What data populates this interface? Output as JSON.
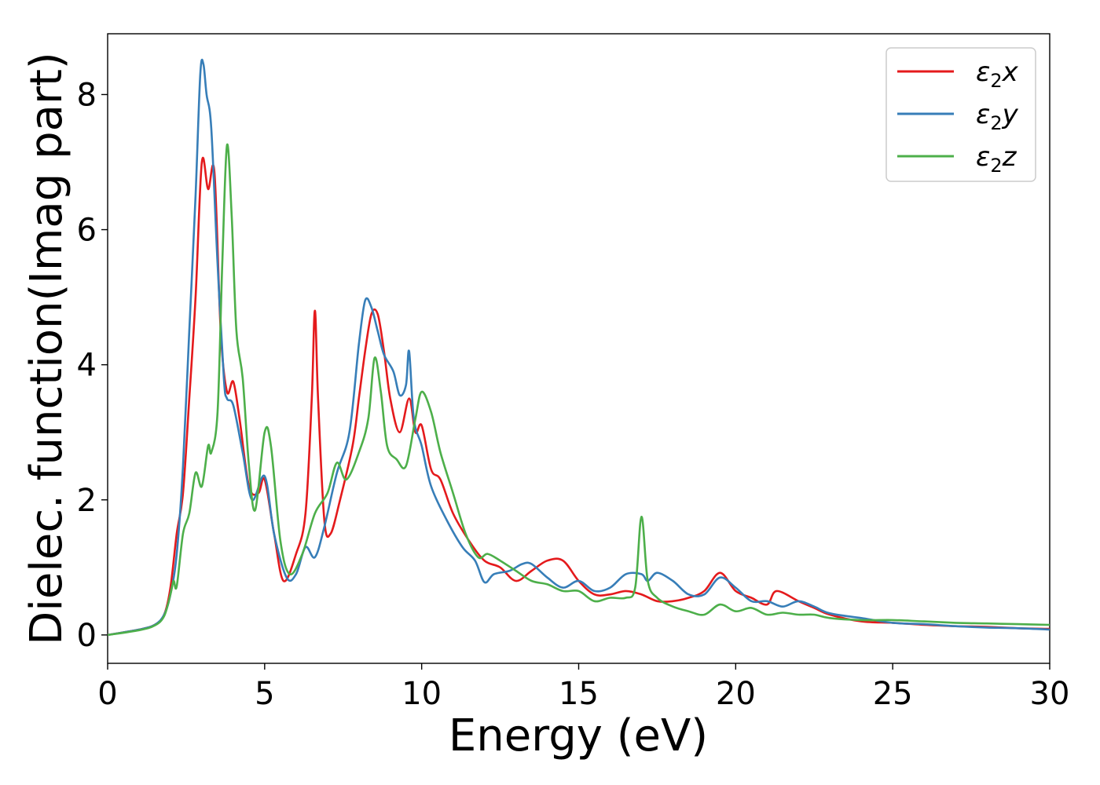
{
  "chart_data": {
    "type": "line",
    "xlabel": "Energy (eV)",
    "ylabel": "Dielec. function(Imag part)",
    "xlim": [
      0,
      30
    ],
    "ylim": [
      -0.42,
      8.9
    ],
    "xticks": [
      0,
      5,
      10,
      15,
      20,
      25,
      30
    ],
    "yticks": [
      0,
      2,
      4,
      6,
      8
    ],
    "grid": false,
    "legend_position": "top-right",
    "series": [
      {
        "name": "ε2x",
        "legend_base": "ε",
        "legend_sub": "2",
        "legend_suffix": "x",
        "color": "#e41a1c",
        "points": [
          [
            0,
            0
          ],
          [
            1,
            0.08
          ],
          [
            1.5,
            0.15
          ],
          [
            1.8,
            0.3
          ],
          [
            2,
            0.7
          ],
          [
            2.2,
            1.5
          ],
          [
            2.4,
            2.1
          ],
          [
            2.6,
            3.5
          ],
          [
            2.8,
            5
          ],
          [
            3,
            7
          ],
          [
            3.2,
            6.6
          ],
          [
            3.4,
            6.85
          ],
          [
            3.6,
            4.5
          ],
          [
            3.8,
            3.6
          ],
          [
            4,
            3.75
          ],
          [
            4.2,
            3.2
          ],
          [
            4.5,
            2.2
          ],
          [
            4.8,
            2.1
          ],
          [
            5,
            2.3
          ],
          [
            5.3,
            1.5
          ],
          [
            5.6,
            0.8
          ],
          [
            6,
            1.2
          ],
          [
            6.3,
            1.8
          ],
          [
            6.5,
            3.5
          ],
          [
            6.6,
            4.8
          ],
          [
            6.7,
            3.5
          ],
          [
            6.9,
            1.7
          ],
          [
            7.1,
            1.5
          ],
          [
            7.4,
            2
          ],
          [
            7.8,
            2.8
          ],
          [
            8,
            3.5
          ],
          [
            8.2,
            4.2
          ],
          [
            8.4,
            4.75
          ],
          [
            8.6,
            4.75
          ],
          [
            8.8,
            4.2
          ],
          [
            9,
            3.5
          ],
          [
            9.3,
            3
          ],
          [
            9.6,
            3.5
          ],
          [
            9.8,
            3
          ],
          [
            10,
            3.1
          ],
          [
            10.3,
            2.45
          ],
          [
            10.6,
            2.3
          ],
          [
            11,
            1.8
          ],
          [
            11.5,
            1.4
          ],
          [
            12,
            1.1
          ],
          [
            12.5,
            1.0
          ],
          [
            13,
            0.8
          ],
          [
            13.5,
            0.95
          ],
          [
            14,
            1.1
          ],
          [
            14.5,
            1.1
          ],
          [
            15,
            0.8
          ],
          [
            15.5,
            0.6
          ],
          [
            16,
            0.6
          ],
          [
            16.5,
            0.65
          ],
          [
            17,
            0.6
          ],
          [
            17.5,
            0.5
          ],
          [
            18,
            0.5
          ],
          [
            18.5,
            0.55
          ],
          [
            19,
            0.65
          ],
          [
            19.5,
            0.92
          ],
          [
            20,
            0.65
          ],
          [
            20.5,
            0.55
          ],
          [
            21,
            0.45
          ],
          [
            21.3,
            0.65
          ],
          [
            22,
            0.5
          ],
          [
            22.5,
            0.4
          ],
          [
            23,
            0.3
          ],
          [
            24,
            0.2
          ],
          [
            25,
            0.18
          ],
          [
            26,
            0.15
          ],
          [
            27,
            0.13
          ],
          [
            28,
            0.12
          ],
          [
            29,
            0.1
          ],
          [
            30,
            0.09
          ]
        ]
      },
      {
        "name": "ε2y",
        "legend_base": "ε",
        "legend_sub": "2",
        "legend_suffix": "y",
        "color": "#377eb8",
        "points": [
          [
            0,
            0
          ],
          [
            1,
            0.08
          ],
          [
            1.5,
            0.15
          ],
          [
            1.8,
            0.3
          ],
          [
            2,
            0.6
          ],
          [
            2.2,
            1.2
          ],
          [
            2.4,
            2.5
          ],
          [
            2.6,
            4.5
          ],
          [
            2.8,
            6.5
          ],
          [
            2.95,
            8.3
          ],
          [
            3.05,
            8.45
          ],
          [
            3.15,
            8
          ],
          [
            3.3,
            7.5
          ],
          [
            3.5,
            5.5
          ],
          [
            3.7,
            3.8
          ],
          [
            3.8,
            3.5
          ],
          [
            4,
            3.4
          ],
          [
            4.3,
            2.7
          ],
          [
            4.6,
            2
          ],
          [
            5,
            2.35
          ],
          [
            5.3,
            1.5
          ],
          [
            5.7,
            0.85
          ],
          [
            6,
            0.9
          ],
          [
            6.3,
            1.3
          ],
          [
            6.6,
            1.15
          ],
          [
            6.9,
            1.6
          ],
          [
            7.3,
            2.4
          ],
          [
            7.7,
            3
          ],
          [
            8,
            4.3
          ],
          [
            8.2,
            4.95
          ],
          [
            8.4,
            4.85
          ],
          [
            8.6,
            4.5
          ],
          [
            8.8,
            4.15
          ],
          [
            9.1,
            3.9
          ],
          [
            9.3,
            3.55
          ],
          [
            9.5,
            3.7
          ],
          [
            9.6,
            4.2
          ],
          [
            9.75,
            3.2
          ],
          [
            10,
            2.8
          ],
          [
            10.3,
            2.2
          ],
          [
            10.8,
            1.7
          ],
          [
            11.3,
            1.3
          ],
          [
            11.7,
            1.1
          ],
          [
            12,
            0.78
          ],
          [
            12.3,
            0.9
          ],
          [
            12.8,
            0.95
          ],
          [
            13.2,
            1.05
          ],
          [
            13.5,
            1.05
          ],
          [
            14,
            0.85
          ],
          [
            14.5,
            0.7
          ],
          [
            15,
            0.8
          ],
          [
            15.5,
            0.65
          ],
          [
            16,
            0.7
          ],
          [
            16.5,
            0.9
          ],
          [
            17,
            0.9
          ],
          [
            17.2,
            0.8
          ],
          [
            17.5,
            0.92
          ],
          [
            18,
            0.8
          ],
          [
            18.5,
            0.6
          ],
          [
            19,
            0.6
          ],
          [
            19.5,
            0.85
          ],
          [
            20,
            0.7
          ],
          [
            20.5,
            0.5
          ],
          [
            21,
            0.5
          ],
          [
            21.5,
            0.42
          ],
          [
            22,
            0.5
          ],
          [
            22.5,
            0.42
          ],
          [
            23,
            0.32
          ],
          [
            24,
            0.25
          ],
          [
            25,
            0.18
          ],
          [
            26,
            0.16
          ],
          [
            27,
            0.13
          ],
          [
            28,
            0.11
          ],
          [
            29,
            0.1
          ],
          [
            30,
            0.08
          ]
        ]
      },
      {
        "name": "ε2z",
        "legend_base": "ε",
        "legend_sub": "2",
        "legend_suffix": "z",
        "color": "#4daf4a",
        "points": [
          [
            0,
            0
          ],
          [
            1,
            0.07
          ],
          [
            1.5,
            0.14
          ],
          [
            1.8,
            0.28
          ],
          [
            2,
            0.6
          ],
          [
            2.1,
            0.8
          ],
          [
            2.2,
            0.72
          ],
          [
            2.4,
            1.5
          ],
          [
            2.6,
            1.8
          ],
          [
            2.8,
            2.4
          ],
          [
            3,
            2.2
          ],
          [
            3.2,
            2.8
          ],
          [
            3.3,
            2.7
          ],
          [
            3.5,
            3.3
          ],
          [
            3.65,
            5.5
          ],
          [
            3.8,
            7.25
          ],
          [
            3.95,
            6.2
          ],
          [
            4.1,
            4.5
          ],
          [
            4.3,
            3.8
          ],
          [
            4.5,
            2.5
          ],
          [
            4.7,
            1.85
          ],
          [
            5,
            3
          ],
          [
            5.2,
            2.8
          ],
          [
            5.5,
            1.4
          ],
          [
            5.8,
            0.9
          ],
          [
            6.2,
            1.2
          ],
          [
            6.6,
            1.8
          ],
          [
            7,
            2.1
          ],
          [
            7.3,
            2.55
          ],
          [
            7.6,
            2.3
          ],
          [
            8,
            2.7
          ],
          [
            8.3,
            3.2
          ],
          [
            8.5,
            4.1
          ],
          [
            8.7,
            3.6
          ],
          [
            8.9,
            2.8
          ],
          [
            9.2,
            2.6
          ],
          [
            9.5,
            2.5
          ],
          [
            9.8,
            3.2
          ],
          [
            10,
            3.6
          ],
          [
            10.3,
            3.3
          ],
          [
            10.6,
            2.7
          ],
          [
            11,
            2.1
          ],
          [
            11.4,
            1.5
          ],
          [
            11.8,
            1.15
          ],
          [
            12.1,
            1.2
          ],
          [
            12.5,
            1.1
          ],
          [
            13,
            0.95
          ],
          [
            13.5,
            0.8
          ],
          [
            14,
            0.75
          ],
          [
            14.5,
            0.65
          ],
          [
            15,
            0.65
          ],
          [
            15.5,
            0.5
          ],
          [
            16,
            0.55
          ],
          [
            16.5,
            0.55
          ],
          [
            16.8,
            0.7
          ],
          [
            17,
            1.75
          ],
          [
            17.2,
            0.8
          ],
          [
            17.5,
            0.55
          ],
          [
            18,
            0.42
          ],
          [
            18.5,
            0.35
          ],
          [
            19,
            0.3
          ],
          [
            19.5,
            0.45
          ],
          [
            20,
            0.35
          ],
          [
            20.5,
            0.4
          ],
          [
            21,
            0.3
          ],
          [
            21.5,
            0.33
          ],
          [
            22,
            0.3
          ],
          [
            22.5,
            0.3
          ],
          [
            23,
            0.25
          ],
          [
            24,
            0.22
          ],
          [
            25,
            0.22
          ],
          [
            26,
            0.2
          ],
          [
            27,
            0.18
          ],
          [
            28,
            0.17
          ],
          [
            29,
            0.16
          ],
          [
            30,
            0.15
          ]
        ]
      }
    ]
  }
}
